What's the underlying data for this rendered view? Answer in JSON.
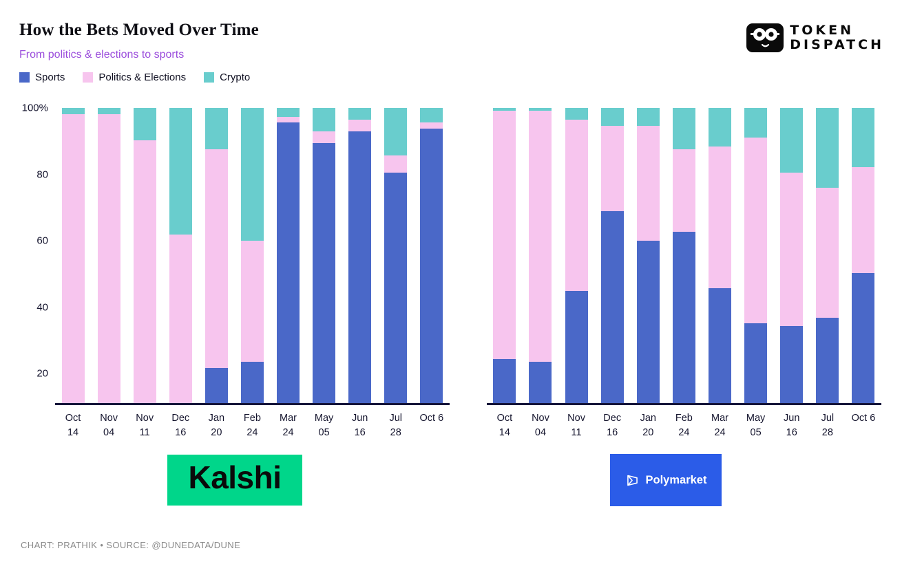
{
  "header": {
    "title": "How the Bets Moved Over Time",
    "subtitle": "From politics & elections to sports"
  },
  "masthead": {
    "line1": "TOKEN",
    "line2": "DISPATCH"
  },
  "legend": [
    {
      "label": "Sports",
      "color": "#4a68c8"
    },
    {
      "label": "Politics & Elections",
      "color": "#f7c5ee"
    },
    {
      "label": "Crypto",
      "color": "#69cdcd"
    }
  ],
  "chart_data": [
    {
      "type": "bar",
      "stacked": true,
      "percent": true,
      "title": "Kalshi",
      "categories": [
        [
          "Oct",
          "14"
        ],
        [
          "Nov",
          "04"
        ],
        [
          "Nov",
          "11"
        ],
        [
          "Dec",
          "16"
        ],
        [
          "Jan",
          "20"
        ],
        [
          "Feb",
          "24"
        ],
        [
          "Mar",
          "24"
        ],
        [
          "May",
          "05"
        ],
        [
          "Jun",
          "16"
        ],
        [
          "Jul",
          "28"
        ],
        [
          "Oct 6"
        ]
      ],
      "series": [
        {
          "name": "Sports",
          "color": "#4a68c8",
          "values": [
            0,
            0,
            0,
            0,
            12,
            14,
            95,
            88,
            92,
            78,
            93
          ]
        },
        {
          "name": "Politics & Elections",
          "color": "#f7c5ee",
          "values": [
            98,
            98,
            89,
            57,
            74,
            41,
            2,
            4,
            4,
            6,
            2
          ]
        },
        {
          "name": "Crypto",
          "color": "#69cdcd",
          "values": [
            2,
            2,
            11,
            43,
            14,
            45,
            3,
            8,
            4,
            16,
            5
          ]
        }
      ],
      "ylim": [
        0,
        100
      ],
      "yticks": [
        {
          "v": 100,
          "label": "100%"
        },
        {
          "v": 80,
          "label": "80"
        },
        {
          "v": 60,
          "label": "60"
        },
        {
          "v": 40,
          "label": "40"
        },
        {
          "v": 20,
          "label": "20"
        }
      ],
      "grid": false,
      "legend_position": "top-left"
    },
    {
      "type": "bar",
      "stacked": true,
      "percent": true,
      "title": "Polymarket",
      "categories": [
        [
          "Oct",
          "14"
        ],
        [
          "Nov",
          "04"
        ],
        [
          "Nov",
          "11"
        ],
        [
          "Dec",
          "16"
        ],
        [
          "Jan",
          "20"
        ],
        [
          "Feb",
          "24"
        ],
        [
          "Mar",
          "24"
        ],
        [
          "May",
          "05"
        ],
        [
          "Jun",
          "16"
        ],
        [
          "Jul",
          "28"
        ],
        [
          "Oct 6"
        ]
      ],
      "series": [
        {
          "name": "Sports",
          "color": "#4a68c8",
          "values": [
            15,
            14,
            38,
            65,
            55,
            58,
            39,
            27,
            26,
            29,
            44
          ]
        },
        {
          "name": "Politics & Elections",
          "color": "#f7c5ee",
          "values": [
            84,
            85,
            58,
            29,
            39,
            28,
            48,
            63,
            52,
            44,
            36
          ]
        },
        {
          "name": "Crypto",
          "color": "#69cdcd",
          "values": [
            1,
            1,
            4,
            6,
            6,
            14,
            13,
            10,
            22,
            27,
            20
          ]
        }
      ],
      "ylim": [
        0,
        100
      ],
      "yticks": [],
      "grid": false,
      "legend_position": "top-left"
    }
  ],
  "brands": {
    "kalshi": {
      "label": "Kalshi",
      "bg": "#00d68a",
      "fg": "#0a0a0a"
    },
    "polymarket": {
      "label": "Polymarket",
      "bg": "#2b5ce8",
      "fg": "#ffffff"
    }
  },
  "footer": {
    "credit": "CHART: PRATHIK • SOURCE: @DUNEDATA/DUNE"
  }
}
